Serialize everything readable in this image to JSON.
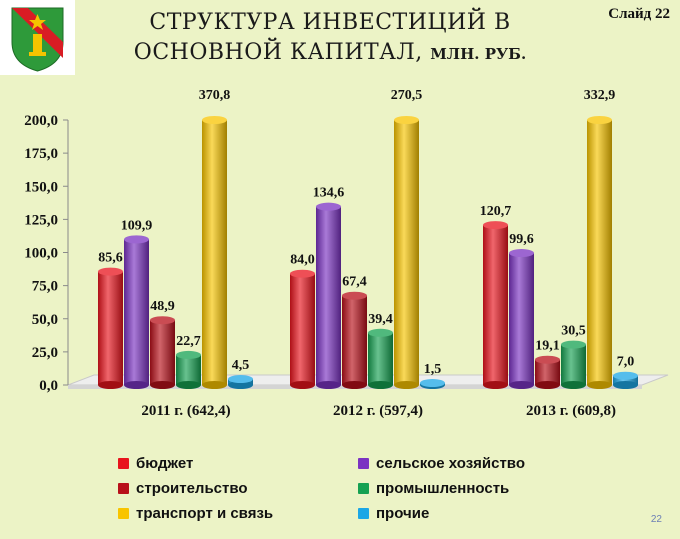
{
  "header": {
    "title_line1": "СТРУКТУРА ИНВЕСТИЦИЙ В",
    "title_line2_main": "ОСНОВНОЙ КАПИТАЛ, ",
    "title_line2_unit": "МЛН. РУБ.",
    "slide_label": "Слайд 22",
    "page_number": "22"
  },
  "chart_data": {
    "type": "bar",
    "title": "СТРУКТУРА ИНВЕСТИЦИЙ В ОСНОВНОЙ КАПИТАЛ, МЛН. РУБ.",
    "categories": [
      "2011 г. (642,4)",
      "2012 г. (597,4)",
      "2013 г. (609,8)"
    ],
    "ylim": [
      0,
      200
    ],
    "y_ticks": [
      "0,0",
      "25,0",
      "50,0",
      "75,0",
      "100,0",
      "125,0",
      "150,0",
      "175,0",
      "200,0"
    ],
    "grid": false,
    "legend_position": "bottom",
    "series": [
      {
        "name": "бюджет",
        "color": "#e8141d",
        "values": [
          85.6,
          84.0,
          120.7
        ],
        "labels": [
          "85,6",
          "84,0",
          "120,7"
        ]
      },
      {
        "name": "сельское хозяйство",
        "color": "#7b33c2",
        "values": [
          109.9,
          134.6,
          99.6
        ],
        "labels": [
          "109,9",
          "134,6",
          "99,6"
        ]
      },
      {
        "name": "строительство",
        "color": "#b8101a",
        "values": [
          48.9,
          67.4,
          19.1
        ],
        "labels": [
          "48,9",
          "67,4",
          "19,1"
        ]
      },
      {
        "name": "промышленность",
        "color": "#16a152",
        "values": [
          22.7,
          39.4,
          30.5
        ],
        "labels": [
          "22,7",
          "39,4",
          "30,5"
        ]
      },
      {
        "name": "транспорт и связь",
        "color": "#f8c400",
        "values": [
          370.8,
          270.5,
          332.9
        ],
        "labels": [
          "370,8",
          "270,5",
          "332,9"
        ]
      },
      {
        "name": "прочие",
        "color": "#1ca7e6",
        "values": [
          4.5,
          1.5,
          7.0
        ],
        "labels": [
          "4,5",
          "1,5",
          "7,0"
        ]
      }
    ]
  }
}
